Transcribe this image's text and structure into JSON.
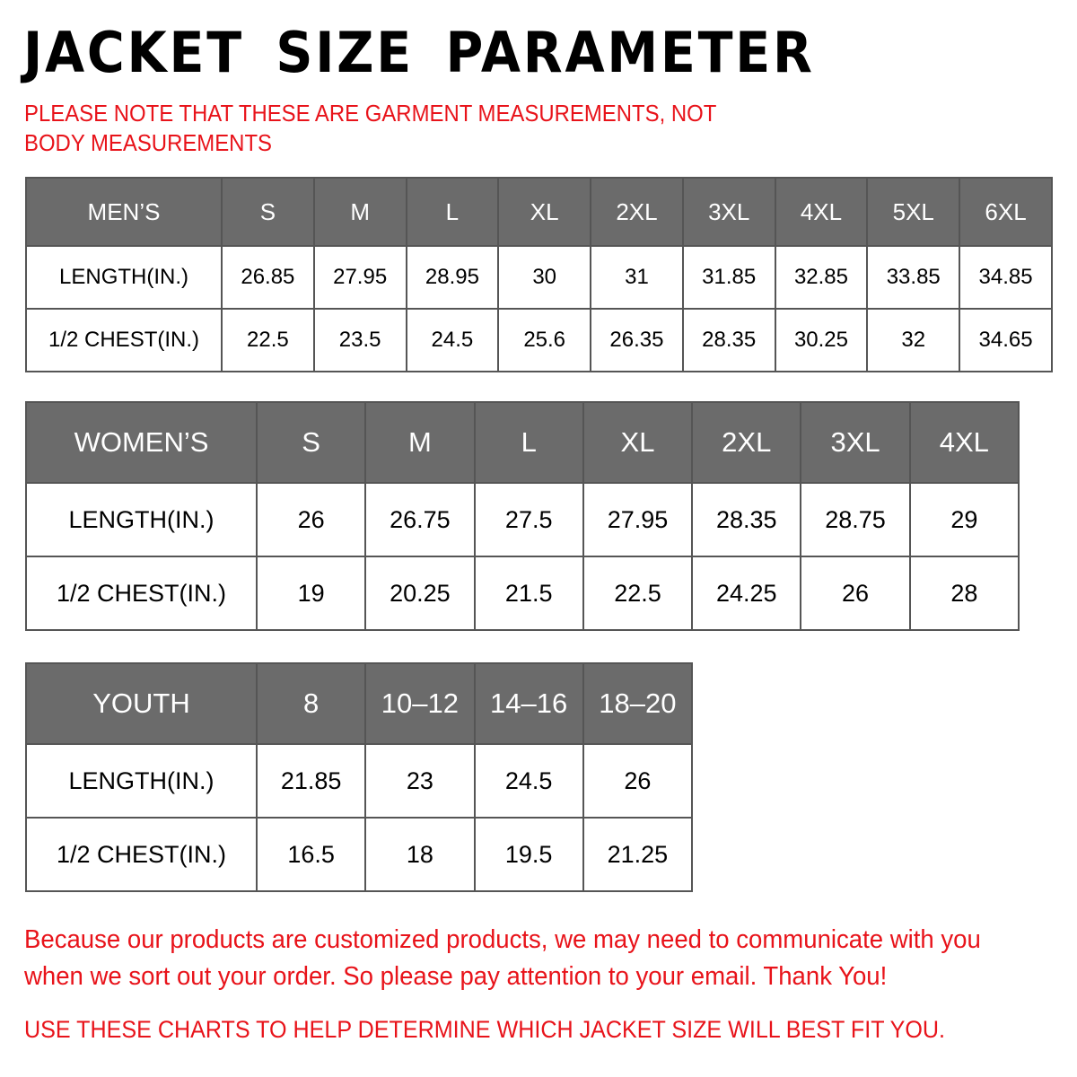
{
  "title": "JACKET SIZE PARAMETER",
  "note": "PLEASE NOTE THAT THESE ARE GARMENT MEASUREMENTS, NOT BODY MEASUREMENTS",
  "colors": {
    "header_bg": "#6b6b6b",
    "accent_red": "#e8131a"
  },
  "tables": {
    "men": {
      "header": [
        "MEN’S",
        "S",
        "M",
        "L",
        "XL",
        "2XL",
        "3XL",
        "4XL",
        "5XL",
        "6XL"
      ],
      "rows": [
        [
          "LENGTH(IN.)",
          "26.85",
          "27.95",
          "28.95",
          "30",
          "31",
          "31.85",
          "32.85",
          "33.85",
          "34.85"
        ],
        [
          "1/2 CHEST(IN.)",
          "22.5",
          "23.5",
          "24.5",
          "25.6",
          "26.35",
          "28.35",
          "30.25",
          "32",
          "34.65"
        ]
      ]
    },
    "women": {
      "header": [
        "WOMEN’S",
        "S",
        "M",
        "L",
        "XL",
        "2XL",
        "3XL",
        "4XL"
      ],
      "rows": [
        [
          "LENGTH(IN.)",
          "26",
          "26.75",
          "27.5",
          "27.95",
          "28.35",
          "28.75",
          "29"
        ],
        [
          "1/2 CHEST(IN.)",
          "19",
          "20.25",
          "21.5",
          "22.5",
          "24.25",
          "26",
          "28"
        ]
      ]
    },
    "youth": {
      "header": [
        "YOUTH",
        "8",
        "10–12",
        "14–16",
        "18–20"
      ],
      "rows": [
        [
          "LENGTH(IN.)",
          "21.85",
          "23",
          "24.5",
          "26"
        ],
        [
          "1/2 CHEST(IN.)",
          "16.5",
          "18",
          "19.5",
          "21.25"
        ]
      ]
    }
  },
  "message": "Because our products are customized products, we may need to communicate with you when we sort out your order. So please pay attention to your email. Thank You!",
  "footer": "USE THESE CHARTS TO HELP DETERMINE WHICH JACKET SIZE WILL BEST FIT YOU."
}
